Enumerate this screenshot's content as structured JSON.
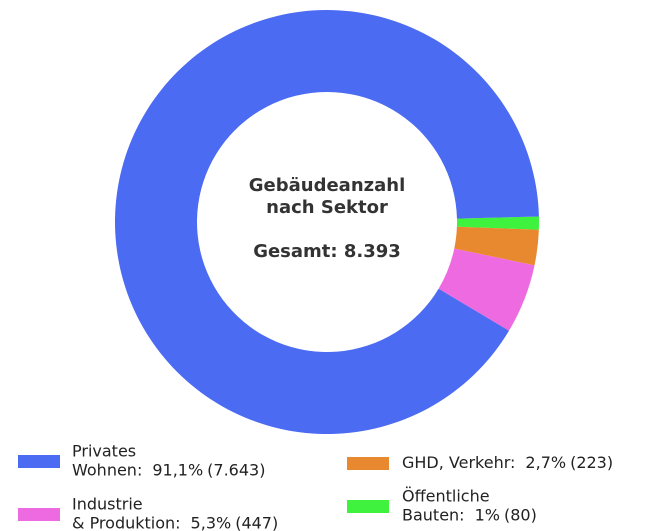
{
  "chart_data": {
    "type": "donut",
    "center_label": [
      "Gebäudeanzahl",
      "nach Sektor",
      "Gesamt: 8.393"
    ],
    "categories": [
      [
        "Privates",
        "Wohnen:"
      ],
      [
        "Industrie",
        "& Produktion:"
      ],
      [
        "GHD, Verkehr:"
      ],
      [
        "Öffentliche",
        "Bauten:"
      ]
    ],
    "values": [
      91.1,
      5.3,
      2.7,
      1
    ],
    "value_labels": [
      "91,1%",
      "5,3%",
      "2,7%",
      "1%"
    ],
    "counts": [
      7643,
      447,
      223,
      80
    ],
    "count_labels": [
      "(7.643)",
      "(447)",
      "(223)",
      "(80)"
    ],
    "colors": [
      "#4b6bf2",
      "#ee6ae0",
      "#e8892f",
      "#3ef23e"
    ]
  }
}
